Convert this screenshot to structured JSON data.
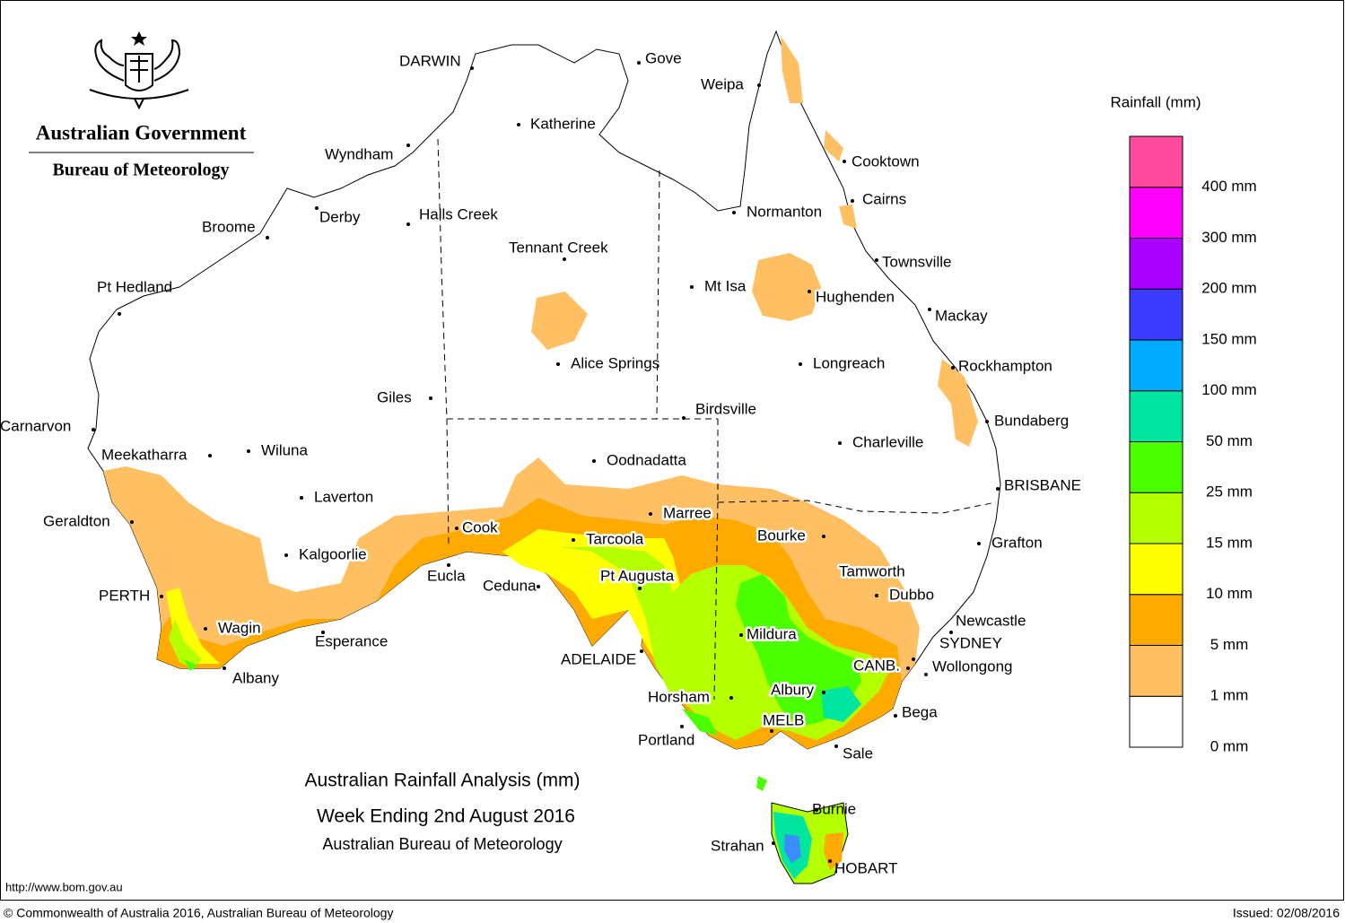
{
  "header": {
    "government": "Australian Government",
    "bureau": "Bureau of Meteorology"
  },
  "title": {
    "line1": "Australian Rainfall Analysis (mm)",
    "line2": "Week Ending 2nd August 2016",
    "line3": "Australian Bureau of Meteorology"
  },
  "footer": {
    "url": "http://www.bom.gov.au",
    "copyright": "© Commonwealth of Australia 2016, Australian Bureau of Meteorology",
    "issued": "Issued: 02/08/2016"
  },
  "legend": {
    "title": "Rainfall (mm)",
    "labels": [
      "0 mm",
      "1 mm",
      "5 mm",
      "10 mm",
      "15 mm",
      "25 mm",
      "50 mm",
      "100 mm",
      "150 mm",
      "200 mm",
      "300 mm",
      "400 mm"
    ],
    "colors": [
      "#ffffff",
      "#ffbf63",
      "#ffaa00",
      "#ffff00",
      "#b4ff00",
      "#4cff00",
      "#00e6a0",
      "#00aaff",
      "#3c3cff",
      "#aa00ff",
      "#ff00ff",
      "#ff4a9e"
    ]
  },
  "places": [
    "DARWIN",
    "Gove",
    "Weipa",
    "Katherine",
    "Cooktown",
    "Wyndham",
    "Cairns",
    "Normanton",
    "Derby",
    "Halls Creek",
    "Broome",
    "Tennant Creek",
    "Townsville",
    "Mt Isa",
    "Hughenden",
    "Pt Hedland",
    "Mackay",
    "Alice Springs",
    "Longreach",
    "Rockhampton",
    "Giles",
    "Birdsville",
    "Bundaberg",
    "Carnarvon",
    "Charleville",
    "Meekatharra",
    "Wiluna",
    "Oodnadatta",
    "BRISBANE",
    "Laverton",
    "Marree",
    "Geraldton",
    "Cook",
    "Tarcoola",
    "Bourke",
    "Grafton",
    "Kalgoorlie",
    "Tamworth",
    "Pt Augusta",
    "Eucla",
    "Ceduna",
    "PERTH",
    "Dubbo",
    "Newcastle",
    "Wagin",
    "Mildura",
    "Esperance",
    "SYDNEY",
    "ADELAIDE",
    "CANB.",
    "Wollongong",
    "Albany",
    "Albury",
    "Horsham",
    "Bega",
    "MELB",
    "Portland",
    "Sale",
    "Burnie",
    "Strahan",
    "HOBART"
  ]
}
